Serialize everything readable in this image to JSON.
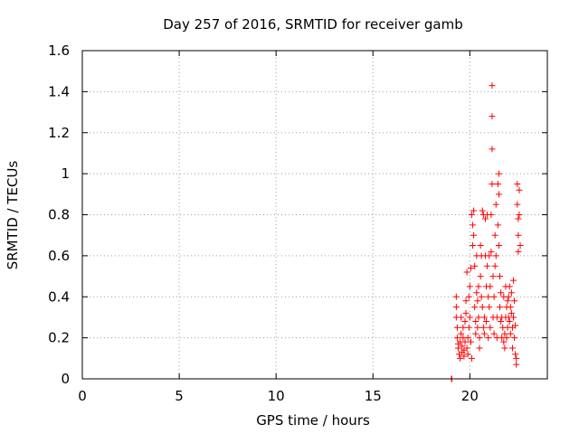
{
  "chart_data": {
    "type": "scatter",
    "title": "Day 257 of 2016, SRMTID for receiver gamb",
    "xlabel": "GPS time / hours",
    "ylabel": "SRMTID / TECUs",
    "xlim": [
      0,
      24
    ],
    "ylim": [
      0,
      1.6
    ],
    "xticks": [
      "0",
      "5",
      "10",
      "15",
      "20"
    ],
    "yticks": [
      "0",
      "0.2",
      "0.4",
      "0.6",
      "0.8",
      "1",
      "1.2",
      "1.4",
      "1.6"
    ],
    "grid": true,
    "marker": "+",
    "color": "#ff0000",
    "series": [
      {
        "name": "gamb",
        "points": [
          [
            19.05,
            0.0
          ],
          [
            19.07,
            0.0
          ],
          [
            19.3,
            0.4
          ],
          [
            19.3,
            0.35
          ],
          [
            19.3,
            0.3
          ],
          [
            19.35,
            0.25
          ],
          [
            19.35,
            0.2
          ],
          [
            19.4,
            0.17
          ],
          [
            19.4,
            0.15
          ],
          [
            19.45,
            0.12
          ],
          [
            19.5,
            0.1
          ],
          [
            19.5,
            0.18
          ],
          [
            19.55,
            0.22
          ],
          [
            19.55,
            0.3
          ],
          [
            19.6,
            0.16
          ],
          [
            19.6,
            0.13
          ],
          [
            19.65,
            0.2
          ],
          [
            19.65,
            0.25
          ],
          [
            19.7,
            0.14
          ],
          [
            19.7,
            0.11
          ],
          [
            19.75,
            0.18
          ],
          [
            19.75,
            0.28
          ],
          [
            19.8,
            0.32
          ],
          [
            19.8,
            0.38
          ],
          [
            19.85,
            0.52
          ],
          [
            19.85,
            0.15
          ],
          [
            19.9,
            0.12
          ],
          [
            19.9,
            0.2
          ],
          [
            19.95,
            0.25
          ],
          [
            19.95,
            0.4
          ],
          [
            20.0,
            0.45
          ],
          [
            20.0,
            0.3
          ],
          [
            20.05,
            0.54
          ],
          [
            20.05,
            0.18
          ],
          [
            20.1,
            0.1
          ],
          [
            20.1,
            0.8
          ],
          [
            20.15,
            0.75
          ],
          [
            20.15,
            0.65
          ],
          [
            20.2,
            0.82
          ],
          [
            20.2,
            0.7
          ],
          [
            20.25,
            0.55
          ],
          [
            20.25,
            0.35
          ],
          [
            20.3,
            0.28
          ],
          [
            20.3,
            0.22
          ],
          [
            20.35,
            0.6
          ],
          [
            20.35,
            0.42
          ],
          [
            20.4,
            0.38
          ],
          [
            20.4,
            0.25
          ],
          [
            20.45,
            0.45
          ],
          [
            20.45,
            0.3
          ],
          [
            20.5,
            0.2
          ],
          [
            20.5,
            0.15
          ],
          [
            20.55,
            0.65
          ],
          [
            20.55,
            0.5
          ],
          [
            20.6,
            0.6
          ],
          [
            20.6,
            0.4
          ],
          [
            20.65,
            0.82
          ],
          [
            20.65,
            0.35
          ],
          [
            20.7,
            0.25
          ],
          [
            20.7,
            0.8
          ],
          [
            20.75,
            0.3
          ],
          [
            20.75,
            0.22
          ],
          [
            20.8,
            0.78
          ],
          [
            20.8,
            0.6
          ],
          [
            20.85,
            0.45
          ],
          [
            20.85,
            0.28
          ],
          [
            20.9,
            0.8
          ],
          [
            20.9,
            0.55
          ],
          [
            20.95,
            0.4
          ],
          [
            20.95,
            0.2
          ],
          [
            21.0,
            0.6
          ],
          [
            21.0,
            0.35
          ],
          [
            21.05,
            0.25
          ],
          [
            21.05,
            0.45
          ],
          [
            21.1,
            0.8
          ],
          [
            21.1,
            0.62
          ],
          [
            21.15,
            1.43
          ],
          [
            21.15,
            1.28
          ],
          [
            21.15,
            1.12
          ],
          [
            21.15,
            0.95
          ],
          [
            21.2,
            0.5
          ],
          [
            21.2,
            0.3
          ],
          [
            21.25,
            0.22
          ],
          [
            21.25,
            0.4
          ],
          [
            21.3,
            0.55
          ],
          [
            21.3,
            0.7
          ],
          [
            21.35,
            0.85
          ],
          [
            21.35,
            0.6
          ],
          [
            21.4,
            0.3
          ],
          [
            21.4,
            0.2
          ],
          [
            21.45,
            0.95
          ],
          [
            21.45,
            0.75
          ],
          [
            21.5,
            1.0
          ],
          [
            21.5,
            0.9
          ],
          [
            21.5,
            0.65
          ],
          [
            21.55,
            0.5
          ],
          [
            21.55,
            0.35
          ],
          [
            21.6,
            0.28
          ],
          [
            21.6,
            0.42
          ],
          [
            21.65,
            0.3
          ],
          [
            21.65,
            0.2
          ],
          [
            21.7,
            0.25
          ],
          [
            21.75,
            0.18
          ],
          [
            21.75,
            0.4
          ],
          [
            21.8,
            0.22
          ],
          [
            21.8,
            0.15
          ],
          [
            21.85,
            0.3
          ],
          [
            21.85,
            0.45
          ],
          [
            21.9,
            0.35
          ],
          [
            21.9,
            0.2
          ],
          [
            21.95,
            0.25
          ],
          [
            21.95,
            0.38
          ],
          [
            22.0,
            0.3
          ],
          [
            22.0,
            0.4
          ],
          [
            22.05,
            0.45
          ],
          [
            22.05,
            0.28
          ],
          [
            22.1,
            0.22
          ],
          [
            22.1,
            0.35
          ],
          [
            22.15,
            0.32
          ],
          [
            22.15,
            0.42
          ],
          [
            22.2,
            0.25
          ],
          [
            22.2,
            0.15
          ],
          [
            22.25,
            0.48
          ],
          [
            22.25,
            0.3
          ],
          [
            22.3,
            0.38
          ],
          [
            22.3,
            0.2
          ],
          [
            22.35,
            0.12
          ],
          [
            22.35,
            0.26
          ],
          [
            22.4,
            0.1
          ],
          [
            22.4,
            0.07
          ],
          [
            22.45,
            0.95
          ],
          [
            22.45,
            0.85
          ],
          [
            22.5,
            0.78
          ],
          [
            22.5,
            0.7
          ],
          [
            22.5,
            0.62
          ],
          [
            22.55,
            0.92
          ],
          [
            22.55,
            0.8
          ],
          [
            22.6,
            0.65
          ]
        ]
      }
    ]
  }
}
